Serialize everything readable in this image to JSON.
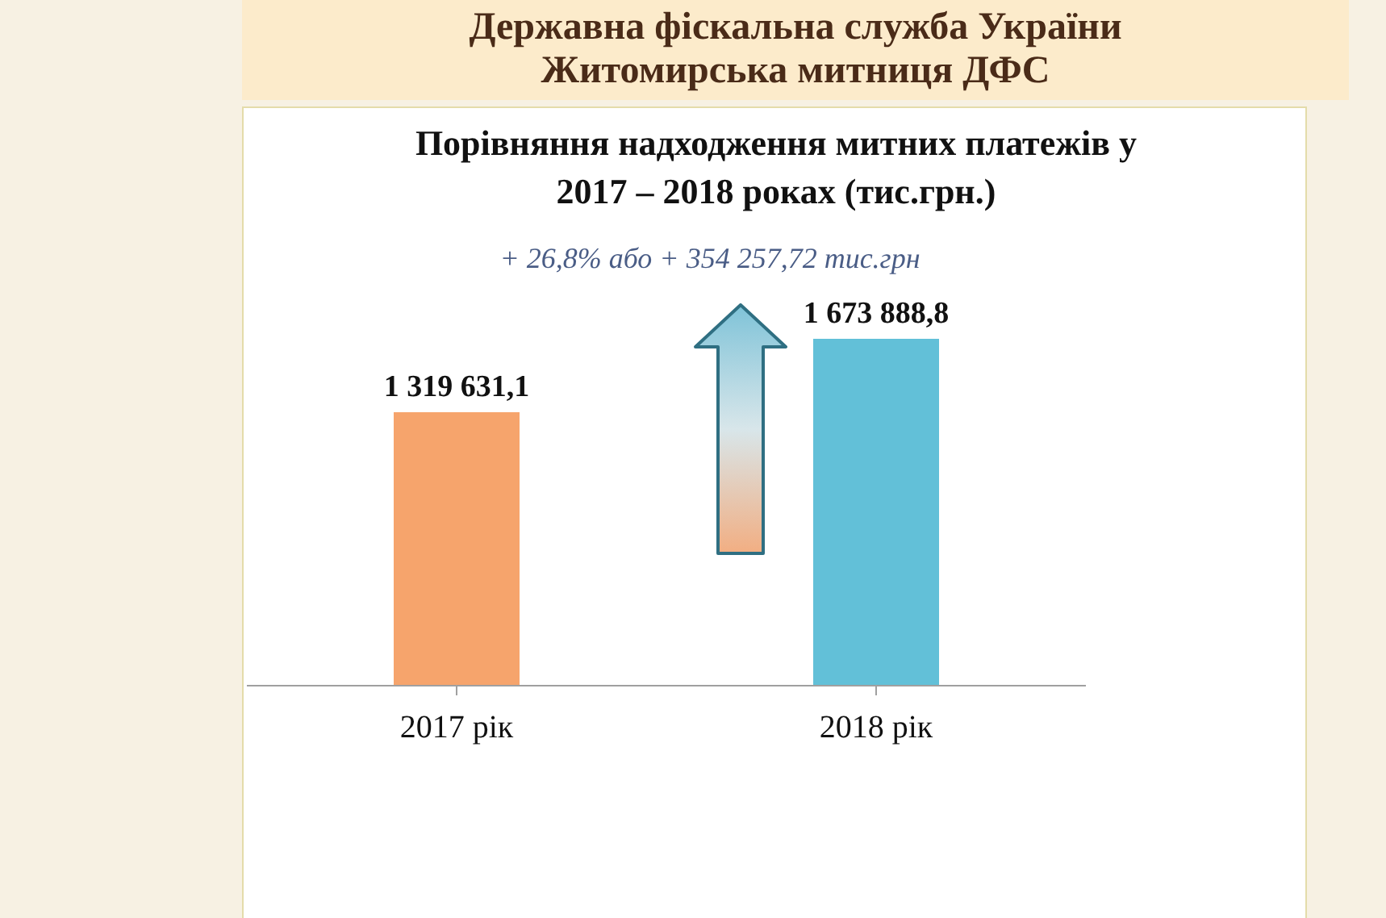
{
  "chart_data": {
    "type": "bar",
    "title": "Порівняння надходження митних платежів у 2017 – 2018 роках (тис.грн.)",
    "categories": [
      "2017 рік",
      "2018 рік"
    ],
    "values": [
      1319631.1,
      1673888.8
    ],
    "value_labels": [
      "1 319 631,1",
      "1 673 888,8"
    ],
    "colors": [
      "#f6a46c",
      "#62c0d8"
    ],
    "annotations": [
      "Державна фіскальна служба України",
      "Житомирська митниця ДФС",
      "+ 26,8% або + 354 257,72 тис.грн"
    ]
  }
}
